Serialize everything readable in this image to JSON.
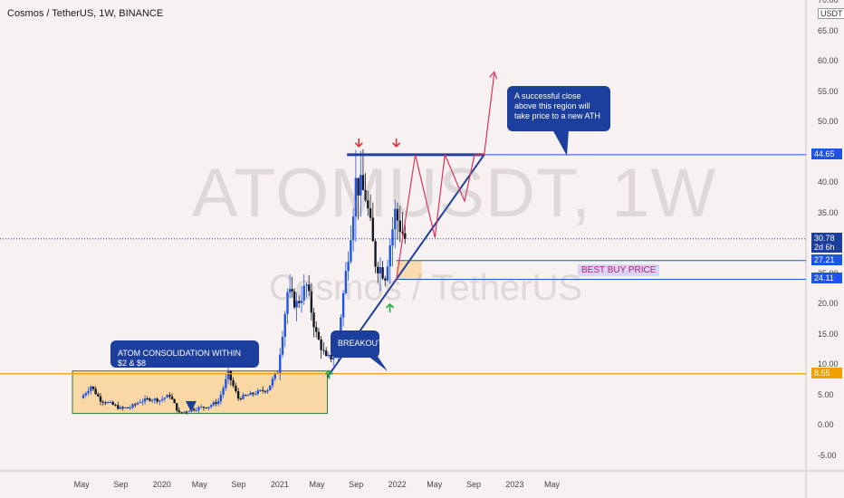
{
  "header": {
    "title": "Cosmos / TetherUS, 1W, BINANCE"
  },
  "watermark": {
    "symbol": "ATOMUSDT, 1W",
    "name": "Cosmos / TetherUS"
  },
  "price_axis": {
    "currency": "USDT",
    "ticks": [
      "70.00",
      "65.00",
      "60.00",
      "55.00",
      "50.00",
      "45.00",
      "40.00",
      "35.00",
      "30.00",
      "25.00",
      "20.00",
      "15.00",
      "10.00",
      "5.00",
      "0.00",
      "-5.00"
    ],
    "tags": [
      {
        "value": "44.65",
        "color": "#1e53e5"
      },
      {
        "value": "30.78",
        "extra": "2d 6h",
        "color": "#1c3e9c"
      },
      {
        "value": "27.21",
        "color": "#1e53e5"
      },
      {
        "value": "24.11",
        "color": "#1e53e5"
      },
      {
        "value": "8.55",
        "color": "#f0a000"
      }
    ]
  },
  "time_axis": {
    "ticks": [
      "May",
      "Sep",
      "2020",
      "May",
      "Sep",
      "2021",
      "May",
      "Sep",
      "2022",
      "May",
      "Sep",
      "2023",
      "May"
    ]
  },
  "annotations": {
    "consolidation": "ATOM CONSOLIDATION WITHIN $2 & $8",
    "breakout": "BREAKOUT",
    "ath_note": "A successful close above this region will take price to a new ATH",
    "best_buy": "BEST BUY PRICE"
  },
  "colors": {
    "background": "#f8f1f1",
    "candle_up": "#1e53e5",
    "candle_down": "#131722",
    "trend": "#1c3e9c",
    "projection": "#e0305a",
    "support": "#f0a000",
    "zone": "#f9d8a6"
  },
  "chart_data": {
    "type": "candlestick",
    "ylim": [
      -8,
      70
    ],
    "date_range": [
      "2019-04",
      "2023-06"
    ],
    "resistance": 44.65,
    "support": 8.55,
    "current_price": 30.78,
    "consolidation_zone": {
      "low": 2,
      "high": 8
    },
    "buy_zone": {
      "low": 24.11,
      "high": 27.21
    },
    "trendline": [
      {
        "x": "2021-06",
        "y": 8
      },
      {
        "x": "2022-10",
        "y": 44.65
      }
    ],
    "projection_path": [
      {
        "x": "2022-01",
        "y": 24
      },
      {
        "x": "2022-03",
        "y": 44.65
      },
      {
        "x": "2022-05",
        "y": 31
      },
      {
        "x": "2022-06",
        "y": 44.65
      },
      {
        "x": "2022-08",
        "y": 37
      },
      {
        "x": "2022-09",
        "y": 44.65
      },
      {
        "x": "2022-10",
        "y": 44.65
      },
      {
        "x": "2022-11",
        "y": 58
      }
    ],
    "price_series": [
      {
        "x": "2019-05",
        "y": 4.5
      },
      {
        "x": "2019-06",
        "y": 6.5
      },
      {
        "x": "2019-07",
        "y": 4.2
      },
      {
        "x": "2019-08",
        "y": 3.6
      },
      {
        "x": "2019-09",
        "y": 2.8
      },
      {
        "x": "2019-10",
        "y": 3.0
      },
      {
        "x": "2019-11",
        "y": 4.0
      },
      {
        "x": "2019-12",
        "y": 4.4
      },
      {
        "x": "2020-01",
        "y": 4.2
      },
      {
        "x": "2020-02",
        "y": 5.0
      },
      {
        "x": "2020-03",
        "y": 2.0
      },
      {
        "x": "2020-04",
        "y": 2.6
      },
      {
        "x": "2020-05",
        "y": 2.9
      },
      {
        "x": "2020-06",
        "y": 3.2
      },
      {
        "x": "2020-07",
        "y": 4.0
      },
      {
        "x": "2020-08",
        "y": 8.5
      },
      {
        "x": "2020-09",
        "y": 4.5
      },
      {
        "x": "2020-10",
        "y": 5.0
      },
      {
        "x": "2020-11",
        "y": 5.5
      },
      {
        "x": "2020-12",
        "y": 6.0
      },
      {
        "x": "2021-01",
        "y": 9.0
      },
      {
        "x": "2021-02",
        "y": 22.0
      },
      {
        "x": "2021-03",
        "y": 20.0
      },
      {
        "x": "2021-04",
        "y": 23.0
      },
      {
        "x": "2021-05",
        "y": 15.0
      },
      {
        "x": "2021-06",
        "y": 11.0
      },
      {
        "x": "2021-07",
        "y": 11.5
      },
      {
        "x": "2021-08",
        "y": 25.0
      },
      {
        "x": "2021-09",
        "y": 40.0
      },
      {
        "x": "2021-10",
        "y": 38.0
      },
      {
        "x": "2021-11",
        "y": 27.0
      },
      {
        "x": "2021-12",
        "y": 25.0
      },
      {
        "x": "2022-01",
        "y": 35.0
      },
      {
        "x": "2022-02",
        "y": 30.78
      }
    ]
  }
}
